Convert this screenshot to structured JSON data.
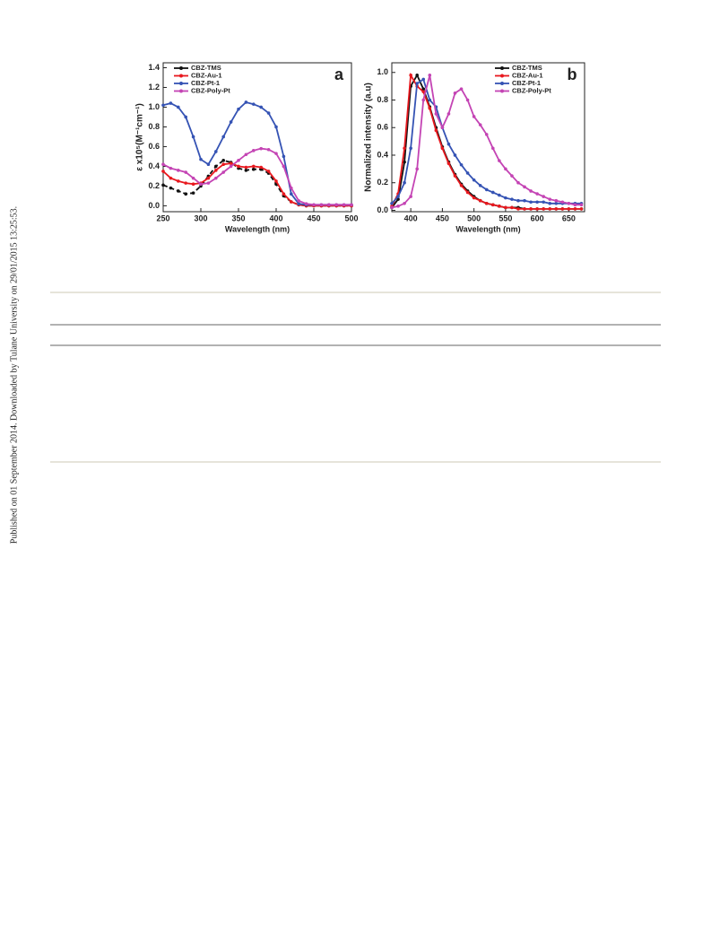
{
  "side_note": "Published on 01 September 2014. Downloaded by Tulane University on 29/01/2015 13:25:53.",
  "chart_data": [
    {
      "type": "line",
      "panel_label": "a",
      "xlabel": "Wavelength (nm)",
      "ylabel": "ε x10⁵(M⁻¹cm⁻¹)",
      "xlim": [
        250,
        500
      ],
      "xticks": [
        250,
        300,
        350,
        400,
        450,
        500
      ],
      "ylim": [
        -0.06,
        1.45
      ],
      "yticks": [
        {
          "value": 0,
          "label": "0.0"
        },
        0.2,
        0.4,
        0.6,
        0.8,
        {
          "value": 1,
          "label": "1.0"
        },
        1.2,
        1.4
      ],
      "legend": "upper left",
      "x": [
        250,
        260,
        270,
        280,
        290,
        300,
        310,
        320,
        330,
        340,
        350,
        360,
        370,
        380,
        390,
        400,
        410,
        420,
        430,
        440,
        450,
        460,
        470,
        480,
        490,
        500
      ],
      "series": [
        {
          "name": "CBZ-TMS",
          "color": "#111111",
          "style": "dashed",
          "values": [
            0.21,
            0.18,
            0.15,
            0.12,
            0.13,
            0.2,
            0.3,
            0.4,
            0.46,
            0.44,
            0.38,
            0.36,
            0.37,
            0.37,
            0.33,
            0.22,
            0.1,
            0.04,
            0.01,
            0,
            0,
            0,
            0,
            0,
            0,
            0
          ]
        },
        {
          "name": "CBZ-Au-1",
          "color": "#e8181e",
          "style": "solid",
          "values": [
            0.35,
            0.28,
            0.25,
            0.23,
            0.22,
            0.23,
            0.28,
            0.36,
            0.42,
            0.43,
            0.4,
            0.39,
            0.4,
            0.39,
            0.35,
            0.25,
            0.12,
            0.04,
            0.01,
            0,
            0,
            0,
            0,
            0,
            0,
            0
          ]
        },
        {
          "name": "CBZ-Pt-1",
          "color": "#3553b4",
          "style": "solid",
          "values": [
            1.02,
            1.04,
            1.0,
            0.9,
            0.7,
            0.47,
            0.42,
            0.55,
            0.7,
            0.85,
            0.98,
            1.05,
            1.03,
            1.0,
            0.94,
            0.8,
            0.5,
            0.12,
            0.02,
            0.01,
            0.01,
            0.01,
            0.01,
            0.01,
            0.01,
            0.01
          ]
        },
        {
          "name": "CBZ-Poly-Pt",
          "color": "#c444b4",
          "style": "solid",
          "values": [
            0.42,
            0.38,
            0.36,
            0.34,
            0.28,
            0.22,
            0.23,
            0.28,
            0.34,
            0.4,
            0.46,
            0.52,
            0.56,
            0.58,
            0.57,
            0.53,
            0.4,
            0.18,
            0.05,
            0.02,
            0.01,
            0.01,
            0.01,
            0.01,
            0.01,
            0.01
          ]
        }
      ]
    },
    {
      "type": "line",
      "panel_label": "b",
      "xlabel": "Wavelength (nm)",
      "ylabel": "Normalized intensity (a.u)",
      "xlim": [
        370,
        675
      ],
      "xticks": [
        400,
        450,
        500,
        550,
        600,
        650
      ],
      "ylim": [
        -0.01,
        1.07
      ],
      "yticks": [
        {
          "value": 0,
          "label": "0.0"
        },
        0.2,
        0.4,
        0.6,
        0.8,
        {
          "value": 1,
          "label": "1.0"
        }
      ],
      "legend": "upper right",
      "x": [
        370,
        380,
        390,
        400,
        410,
        420,
        430,
        440,
        450,
        460,
        470,
        480,
        490,
        500,
        510,
        520,
        530,
        540,
        550,
        560,
        570,
        580,
        590,
        600,
        610,
        620,
        630,
        640,
        650,
        660,
        670
      ],
      "series": [
        {
          "name": "CBZ-TMS",
          "color": "#111111",
          "style": "solid",
          "values": [
            0.02,
            0.08,
            0.35,
            0.9,
            0.98,
            0.88,
            0.75,
            0.6,
            0.46,
            0.35,
            0.26,
            0.19,
            0.14,
            0.1,
            0.07,
            0.05,
            0.04,
            0.03,
            0.02,
            0.02,
            0.02,
            0.01,
            0.01,
            0.01,
            0.01,
            0.01,
            0.01,
            0.01,
            0.01,
            0.01,
            0.01
          ]
        },
        {
          "name": "CBZ-Au-1",
          "color": "#e8181e",
          "style": "solid",
          "values": [
            0.03,
            0.12,
            0.45,
            0.98,
            0.9,
            0.86,
            0.74,
            0.58,
            0.45,
            0.34,
            0.25,
            0.18,
            0.13,
            0.09,
            0.07,
            0.05,
            0.04,
            0.03,
            0.02,
            0.02,
            0.01,
            0.01,
            0.01,
            0.01,
            0.01,
            0.01,
            0.01,
            0.01,
            0.01,
            0.01,
            0.01
          ]
        },
        {
          "name": "CBZ-Pt-1",
          "color": "#3553b4",
          "style": "solid",
          "values": [
            0.05,
            0.1,
            0.2,
            0.45,
            0.92,
            0.95,
            0.8,
            0.75,
            0.6,
            0.48,
            0.4,
            0.33,
            0.27,
            0.22,
            0.18,
            0.15,
            0.13,
            0.11,
            0.09,
            0.08,
            0.07,
            0.07,
            0.06,
            0.06,
            0.06,
            0.05,
            0.05,
            0.05,
            0.05,
            0.05,
            0.05
          ]
        },
        {
          "name": "CBZ-Poly-Pt",
          "color": "#c444b4",
          "style": "solid",
          "values": [
            0.02,
            0.03,
            0.05,
            0.1,
            0.3,
            0.8,
            0.98,
            0.7,
            0.6,
            0.7,
            0.85,
            0.88,
            0.8,
            0.68,
            0.62,
            0.55,
            0.45,
            0.36,
            0.3,
            0.25,
            0.2,
            0.17,
            0.14,
            0.12,
            0.1,
            0.08,
            0.07,
            0.06,
            0.05,
            0.04,
            0.04
          ]
        }
      ]
    }
  ]
}
